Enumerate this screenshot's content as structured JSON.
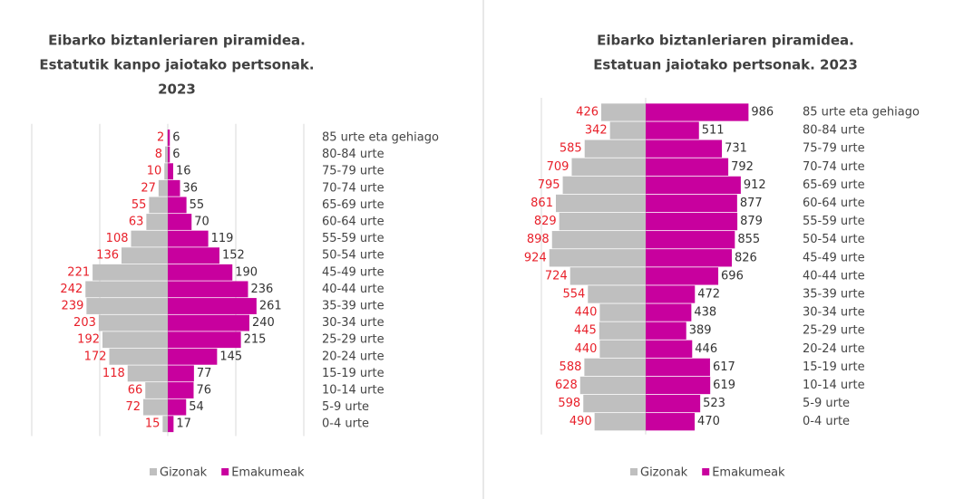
{
  "chart_data": [
    {
      "type": "pyramid",
      "title": [
        "Eibarko biztanleriaren piramidea.",
        "Estatutik kanpo jaiotako pertsonak.",
        "2023"
      ],
      "categories": [
        "85 urte eta gehiago",
        "80-84 urte",
        "75-79 urte",
        "70-74 urte",
        "65-69 urte",
        "60-64 urte",
        "55-59 urte",
        "50-54 urte",
        "45-49 urte",
        "40-44 urte",
        "35-39 urte",
        "30-34 urte",
        "25-29 urte",
        "20-24 urte",
        "15-19 urte",
        "10-14 urte",
        "5-9 urte",
        "0-4 urte"
      ],
      "series": [
        {
          "name": "Gizonak",
          "color": "#bfbfbf",
          "label_color": "#e8202a",
          "values": [
            2,
            8,
            10,
            27,
            55,
            63,
            108,
            136,
            221,
            242,
            239,
            203,
            192,
            172,
            118,
            66,
            72,
            15
          ]
        },
        {
          "name": "Emakumeak",
          "color": "#c8009e",
          "label_color": "#333333",
          "values": [
            6,
            6,
            16,
            36,
            55,
            70,
            119,
            152,
            190,
            236,
            261,
            240,
            215,
            145,
            77,
            76,
            54,
            17
          ]
        }
      ],
      "xlim": [
        -400,
        400
      ],
      "xticks": [
        -400,
        -200,
        0,
        200,
        400
      ],
      "grid": true
    },
    {
      "type": "pyramid",
      "title": [
        "Eibarko biztanleriaren piramidea.",
        "Estatuan jaiotako pertsonak. 2023"
      ],
      "categories": [
        "85 urte eta gehiago",
        "80-84 urte",
        "75-79 urte",
        "70-74 urte",
        "65-69 urte",
        "60-64 urte",
        "55-59 urte",
        "50-54 urte",
        "45-49 urte",
        "40-44 urte",
        "35-39 urte",
        "30-34 urte",
        "25-29 urte",
        "20-24 urte",
        "15-19 urte",
        "10-14 urte",
        "5-9 urte",
        "0-4 urte"
      ],
      "series": [
        {
          "name": "Gizonak",
          "color": "#bfbfbf",
          "label_color": "#e8202a",
          "values": [
            426,
            342,
            585,
            709,
            795,
            861,
            829,
            898,
            924,
            724,
            554,
            440,
            445,
            440,
            588,
            628,
            598,
            490
          ]
        },
        {
          "name": "Emakumeak",
          "color": "#c8009e",
          "label_color": "#333333",
          "values": [
            986,
            511,
            731,
            792,
            912,
            877,
            879,
            855,
            826,
            696,
            472,
            438,
            389,
            446,
            617,
            619,
            523,
            470
          ]
        }
      ],
      "xlim": [
        -1000,
        1000
      ],
      "xticks": [
        -1000,
        0
      ],
      "grid": true
    }
  ]
}
